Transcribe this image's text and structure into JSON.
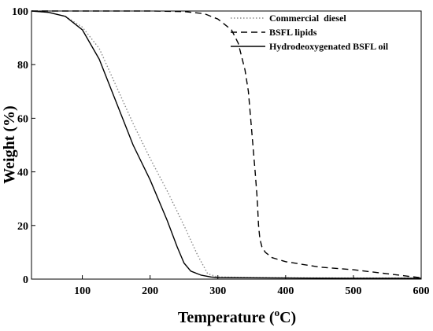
{
  "chart_data": {
    "type": "line",
    "title": "",
    "xlabel_main": "Temperature (",
    "xlabel_sup": "o",
    "xlabel_tail": "C)",
    "ylabel": "Weight (%)",
    "xlim": [
      25,
      600
    ],
    "ylim": [
      0,
      100
    ],
    "xticks": [
      100,
      200,
      300,
      400,
      500,
      600
    ],
    "yticks": [
      0,
      20,
      40,
      60,
      80,
      100
    ],
    "legend_position": "top-right",
    "series": [
      {
        "name": "Commercial  diesel",
        "style": "dotted",
        "color": "#8a8a8a",
        "x": [
          25,
          50,
          75,
          100,
          125,
          150,
          175,
          200,
          225,
          250,
          270,
          285,
          300,
          350,
          400,
          500,
          600
        ],
        "y": [
          100,
          99.5,
          98,
          94,
          86,
          72,
          58,
          45,
          33,
          20,
          9,
          2,
          0.8,
          0.6,
          0.5,
          0.4,
          0.4
        ]
      },
      {
        "name": "BSFL lipids",
        "style": "dashed",
        "color": "#000000",
        "x": [
          25,
          100,
          200,
          250,
          280,
          300,
          320,
          330,
          340,
          345,
          350,
          355,
          358,
          360,
          362,
          365,
          370,
          380,
          400,
          450,
          500,
          550,
          600
        ],
        "y": [
          100,
          100,
          100,
          99.8,
          99,
          97,
          93,
          88,
          78,
          70,
          55,
          40,
          30,
          20,
          15,
          12,
          10,
          8,
          6.5,
          4.5,
          3.5,
          2,
          0.5
        ]
      },
      {
        "name": "Hydrodeoxygenated BSFL oil",
        "style": "solid",
        "color": "#000000",
        "x": [
          25,
          50,
          75,
          100,
          125,
          150,
          175,
          200,
          225,
          240,
          250,
          260,
          275,
          290,
          300,
          350,
          400,
          500,
          600
        ],
        "y": [
          100,
          99.5,
          98,
          93,
          82,
          66,
          50,
          37,
          22,
          12,
          6,
          3,
          1.5,
          0.8,
          0.6,
          0.5,
          0.4,
          0.3,
          0.3
        ]
      }
    ]
  }
}
